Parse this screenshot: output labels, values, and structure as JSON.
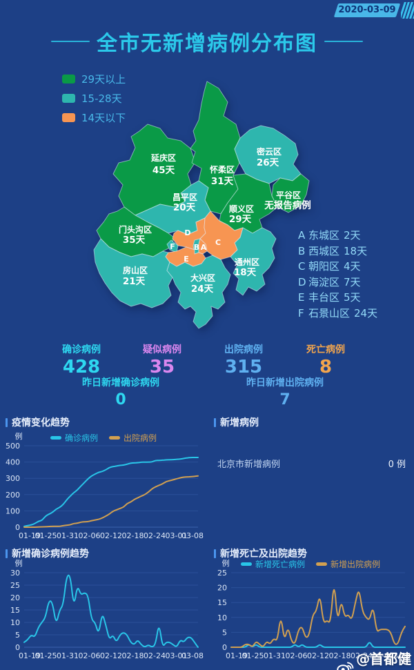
{
  "header": {
    "date": "2020-03-09",
    "title": "全市无新增病例分布图"
  },
  "theme": {
    "background": "#1d4086",
    "accent_cyan": "#2bc9ea",
    "green": "#0a9a47",
    "teal": "#2eb6ae",
    "orange": "#f79552",
    "line_cyan": "#29c6e8",
    "line_tan": "#d2a050"
  },
  "legend": [
    {
      "label": "29天以上",
      "color": "#0a9a47"
    },
    {
      "label": "15-28天",
      "color": "#2eb6ae"
    },
    {
      "label": "14天以下",
      "color": "#f79552"
    }
  ],
  "map": {
    "districts": [
      {
        "name": "延庆区",
        "days": "45天",
        "category": "green"
      },
      {
        "name": "怀柔区",
        "days": "31天",
        "category": "green"
      },
      {
        "name": "密云区",
        "days": "26天",
        "category": "teal"
      },
      {
        "name": "昌平区",
        "days": "20天",
        "category": "teal"
      },
      {
        "name": "平谷区",
        "days": "无报告病例",
        "category": "green"
      },
      {
        "name": "顺义区",
        "days": "29天",
        "category": "green"
      },
      {
        "name": "门头沟区",
        "days": "35天",
        "category": "green"
      },
      {
        "name": "房山区",
        "days": "21天",
        "category": "teal"
      },
      {
        "name": "大兴区",
        "days": "24天",
        "category": "teal"
      },
      {
        "name": "通州区",
        "days": "18天",
        "category": "teal"
      },
      {
        "name": "海淀区",
        "letter": "D",
        "category": "orange"
      },
      {
        "name": "石景山区",
        "letter": "F",
        "category": "teal"
      },
      {
        "name": "西城区",
        "letter": "B",
        "category": "teal"
      },
      {
        "name": "东城区",
        "letter": "A",
        "category": "orange"
      },
      {
        "name": "朝阳区",
        "letter": "C",
        "category": "orange"
      },
      {
        "name": "丰台区",
        "letter": "E",
        "category": "orange"
      }
    ],
    "letter_list": [
      {
        "letter": "A",
        "name": "东城区",
        "days": "2天"
      },
      {
        "letter": "B",
        "name": "西城区",
        "days": "18天"
      },
      {
        "letter": "C",
        "name": "朝阳区",
        "days": "4天"
      },
      {
        "letter": "D",
        "name": "海淀区",
        "days": "7天"
      },
      {
        "letter": "E",
        "name": "丰台区",
        "days": "5天"
      },
      {
        "letter": "F",
        "name": "石景山区",
        "days": "24天"
      }
    ]
  },
  "stats": {
    "row1": [
      {
        "label": "确诊病例",
        "value": "428",
        "color": "#2ed8f0"
      },
      {
        "label": "疑似病例",
        "value": "35",
        "color": "#db87ef"
      },
      {
        "label": "出院病例",
        "value": "315",
        "color": "#5fb0f0"
      },
      {
        "label": "死亡病例",
        "value": "8",
        "color": "#f2a54d"
      }
    ],
    "row2": [
      {
        "label": "昨日新增确诊病例",
        "value": "0",
        "color": "#2ed8f0"
      },
      {
        "label": "昨日新增出院病例",
        "value": "7",
        "color": "#5fb0f0"
      }
    ]
  },
  "panels": {
    "trend_title": "疫情变化趋势",
    "new_cases_title": "新增病例",
    "new_cases_row": {
      "label": "北京市新增病例",
      "value": "0 例"
    },
    "new_confirmed_title": "新增确诊病例趋势",
    "death_discharge_title": "新增死亡及出院趋势"
  },
  "footer": {
    "watermark": "@首都健康"
  },
  "chart_data": [
    {
      "type": "line",
      "title": "疫情变化趋势",
      "unit": "例",
      "x_ticks": [
        "01-19",
        "01-25",
        "01-31",
        "02-06",
        "02-12",
        "02-18",
        "02-24",
        "03-01",
        "03-08"
      ],
      "ylim": [
        0,
        500
      ],
      "yticks": [
        0,
        100,
        200,
        300,
        400,
        500
      ],
      "grid": true,
      "legend_position": "top",
      "series": [
        {
          "name": "确诊病例",
          "color": "#29c6e8",
          "values": [
            5,
            10,
            14,
            22,
            36,
            41,
            68,
            80,
            91,
            111,
            121,
            139,
            168,
            191,
            212,
            228,
            253,
            274,
            297,
            315,
            326,
            337,
            342,
            352,
            366,
            372,
            375,
            380,
            381,
            387,
            393,
            395,
            396,
            399,
            399,
            400,
            400,
            410,
            410,
            411,
            413,
            414,
            414,
            417,
            418,
            422,
            426,
            428,
            428,
            428
          ]
        },
        {
          "name": "出院病例",
          "color": "#d2a050",
          "values": [
            0,
            0,
            0,
            0,
            1,
            2,
            2,
            4,
            5,
            5,
            5,
            9,
            12,
            14,
            23,
            24,
            31,
            33,
            34,
            40,
            44,
            48,
            56,
            68,
            80,
            98,
            106,
            115,
            123,
            145,
            154,
            170,
            180,
            191,
            200,
            215,
            235,
            248,
            257,
            266,
            280,
            285,
            291,
            297,
            303,
            308,
            309,
            310,
            312,
            315
          ]
        }
      ]
    },
    {
      "type": "line",
      "title": "新增确诊病例趋势",
      "unit": "例",
      "x_ticks": [
        "01-19",
        "01-25",
        "01-31",
        "02-06",
        "02-12",
        "02-18",
        "02-24",
        "03-01",
        "03-08"
      ],
      "ylim": [
        0,
        30
      ],
      "yticks": [
        0,
        5,
        10,
        15,
        20,
        25,
        30
      ],
      "grid": true,
      "legend_position": "none",
      "series": [
        {
          "name": "新增确诊病例",
          "color": "#29c6e8",
          "values": [
            2,
            3,
            5,
            4,
            8,
            10,
            12,
            19,
            18,
            9,
            15,
            17,
            29,
            29,
            16,
            25,
            21,
            22,
            21,
            11,
            10,
            5,
            14,
            9,
            3,
            5,
            2,
            5,
            6,
            5,
            2,
            1,
            3,
            1,
            0,
            1,
            0,
            1,
            10,
            0,
            2,
            2,
            1,
            0,
            3,
            2,
            4,
            4,
            2,
            0
          ]
        }
      ]
    },
    {
      "type": "line",
      "title": "新增死亡及出院趋势",
      "unit": "例",
      "x_ticks": [
        "01-19",
        "01-25",
        "01-31",
        "02-06",
        "02-12",
        "02-18",
        "02-24",
        "03-01",
        "03-08"
      ],
      "ylim": [
        0,
        25
      ],
      "yticks": [
        0,
        5,
        10,
        15,
        20,
        25
      ],
      "grid": true,
      "legend_position": "top",
      "series": [
        {
          "name": "新增死亡病例",
          "color": "#29c6e8",
          "values": [
            0,
            0,
            0,
            0,
            0,
            1,
            0,
            1,
            0,
            0,
            0,
            0,
            0,
            0,
            0,
            0,
            0,
            0,
            1,
            0,
            1,
            0,
            0,
            0,
            0,
            1,
            0,
            0,
            0,
            0,
            0,
            0,
            0,
            0,
            0,
            0,
            0,
            0,
            0,
            2,
            0,
            0,
            0,
            0,
            0,
            0,
            0,
            0,
            0,
            0
          ]
        },
        {
          "name": "新增出院病例",
          "color": "#d2a050",
          "values": [
            0,
            0,
            0,
            0,
            1,
            1,
            0,
            2,
            1,
            0,
            2,
            1,
            3,
            2,
            11,
            2,
            7,
            2,
            1,
            6,
            7,
            3,
            4,
            11,
            12,
            18,
            8,
            9,
            8,
            23,
            8,
            16,
            10,
            11,
            9,
            15,
            20,
            12,
            10,
            9,
            14,
            5,
            6,
            6,
            6,
            5,
            1,
            1,
            5,
            7
          ]
        }
      ]
    }
  ]
}
